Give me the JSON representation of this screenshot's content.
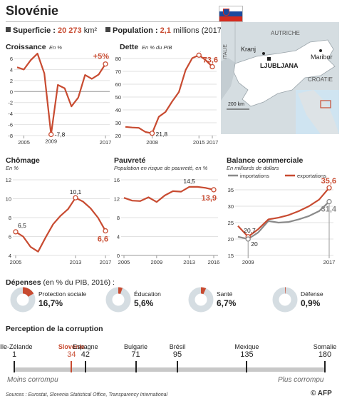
{
  "title": "Slovénie",
  "superficie": {
    "label": "Superficie :",
    "value": "20 273",
    "unit": "km²"
  },
  "population": {
    "label": "Population :",
    "value": "2,1",
    "unit": "millions (2017)"
  },
  "map": {
    "austria": "AUTRICHE",
    "italy": "ITALIE",
    "croatia": "CROATIE",
    "kranj": "Kranj",
    "maribor": "Maribor",
    "ljubljana": "LJUBLJANA",
    "scale": "200 km"
  },
  "colors": {
    "accent": "#c84b31",
    "grey": "#8a8a8a",
    "map_land": "#cfd8dc",
    "slovenia": "#ffffff",
    "flag_blue": "#1c4a9e",
    "flag_red": "#d52b1e"
  },
  "chart_data": [
    {
      "type": "line",
      "title": "Croissance",
      "subtitle": "En %",
      "x": [
        2004,
        2005,
        2006,
        2007,
        2008,
        2009,
        2010,
        2011,
        2012,
        2013,
        2014,
        2015,
        2016,
        2017
      ],
      "values": [
        4.4,
        4.0,
        5.7,
        6.9,
        3.3,
        -7.8,
        1.2,
        0.6,
        -2.7,
        -1.1,
        3.0,
        2.3,
        3.1,
        5.0
      ],
      "ylim": [
        -8,
        6
      ],
      "yticks": [
        "6",
        "4",
        "2",
        "0",
        "-2",
        "-4",
        "-6",
        "-8"
      ],
      "xticks": [
        "2005",
        "2017"
      ],
      "annotations": [
        "+5%",
        "-7,8",
        "2009"
      ]
    },
    {
      "type": "line",
      "title": "Dette",
      "subtitle": "En % du PIB",
      "x": [
        2004,
        2005,
        2006,
        2007,
        2008,
        2009,
        2010,
        2011,
        2012,
        2013,
        2014,
        2015,
        2016,
        2017
      ],
      "values": [
        26.8,
        26.3,
        26.0,
        22.8,
        21.8,
        34.6,
        38.4,
        46.6,
        53.9,
        71.0,
        80.3,
        82.6,
        78.7,
        73.6
      ],
      "ylim": [
        20,
        80
      ],
      "yticks": [
        "80",
        "70",
        "60",
        "50",
        "40",
        "30",
        "20"
      ],
      "xticks": [
        "2008",
        "2015",
        "2017"
      ],
      "annotations": [
        "82,6",
        "73,6",
        "21,8"
      ]
    },
    {
      "type": "line",
      "title": "Chômage",
      "subtitle": "En %",
      "x": [
        2005,
        2006,
        2007,
        2008,
        2009,
        2010,
        2011,
        2012,
        2013,
        2014,
        2015,
        2016,
        2017
      ],
      "values": [
        6.5,
        6.0,
        4.9,
        4.4,
        5.9,
        7.3,
        8.2,
        8.9,
        10.1,
        9.7,
        9.0,
        8.0,
        6.6
      ],
      "ylim": [
        4,
        12
      ],
      "yticks": [
        "12",
        "10",
        "8",
        "6",
        "4"
      ],
      "xticks": [
        "2005",
        "2013",
        "2017"
      ],
      "annotations": [
        "6,5",
        "10,1",
        "6,6"
      ]
    },
    {
      "type": "line",
      "title": "Pauvreté",
      "subtitle": "Population en risque de pauvreté, en %",
      "x": [
        2005,
        2006,
        2007,
        2008,
        2009,
        2010,
        2011,
        2012,
        2013,
        2014,
        2015,
        2016
      ],
      "values": [
        12.2,
        11.6,
        11.5,
        12.3,
        11.3,
        12.7,
        13.6,
        13.5,
        14.5,
        14.5,
        14.3,
        13.9
      ],
      "ylim": [
        0,
        16
      ],
      "yticks": [
        "16",
        "12",
        "8",
        "4",
        "0"
      ],
      "xticks": [
        "2005",
        "2009",
        "2013",
        "2016"
      ],
      "annotations": [
        "14,5",
        "13,9"
      ]
    },
    {
      "type": "line",
      "title": "Balance commerciale",
      "subtitle": "En milliards de dollars",
      "x": [
        2008,
        2009,
        2010,
        2011,
        2012,
        2013,
        2014,
        2015,
        2016,
        2017
      ],
      "series": [
        {
          "name": "importations",
          "color": "#8a8a8a",
          "values": [
            20.7,
            20.0,
            22.0,
            25.5,
            25.0,
            25.2,
            26.0,
            27.0,
            28.5,
            31.4
          ]
        },
        {
          "name": "exportations",
          "color": "#c84b31",
          "values": [
            24.0,
            20.7,
            23.0,
            26.0,
            26.5,
            27.3,
            28.5,
            30.0,
            32.0,
            35.6
          ]
        }
      ],
      "ylim": [
        15,
        35
      ],
      "yticks": [
        "35",
        "30",
        "25",
        "20",
        "15"
      ],
      "xticks": [
        "2009",
        "2017"
      ],
      "annotations": [
        "20,7",
        "20",
        "35,6",
        "31,4"
      ]
    },
    {
      "type": "pie",
      "title": "Dépenses",
      "subtitle": "(en % du PIB, 2016) :",
      "categories": [
        "Protection sociale",
        "Éducation",
        "Santé",
        "Défense"
      ],
      "values": [
        16.7,
        5.6,
        6.7,
        0.9
      ],
      "labels": [
        "16,7%",
        "5,6%",
        "6,7%",
        "0,9%"
      ]
    },
    {
      "type": "scatter",
      "title": "Perception de la corruption",
      "categories": [
        "Nlle-Zélande",
        "Slovénie",
        "Espagne",
        "Bulgarie",
        "Brésil",
        "Mexique",
        "Somalie"
      ],
      "values": [
        1,
        34,
        42,
        71,
        95,
        135,
        180
      ],
      "scale_labels": [
        "Moins corrompu",
        "Plus corrompu"
      ]
    }
  ],
  "source": "Sources : Eurostat, Slovenia Statistical Office, Transparency International",
  "logo": "© AFP"
}
